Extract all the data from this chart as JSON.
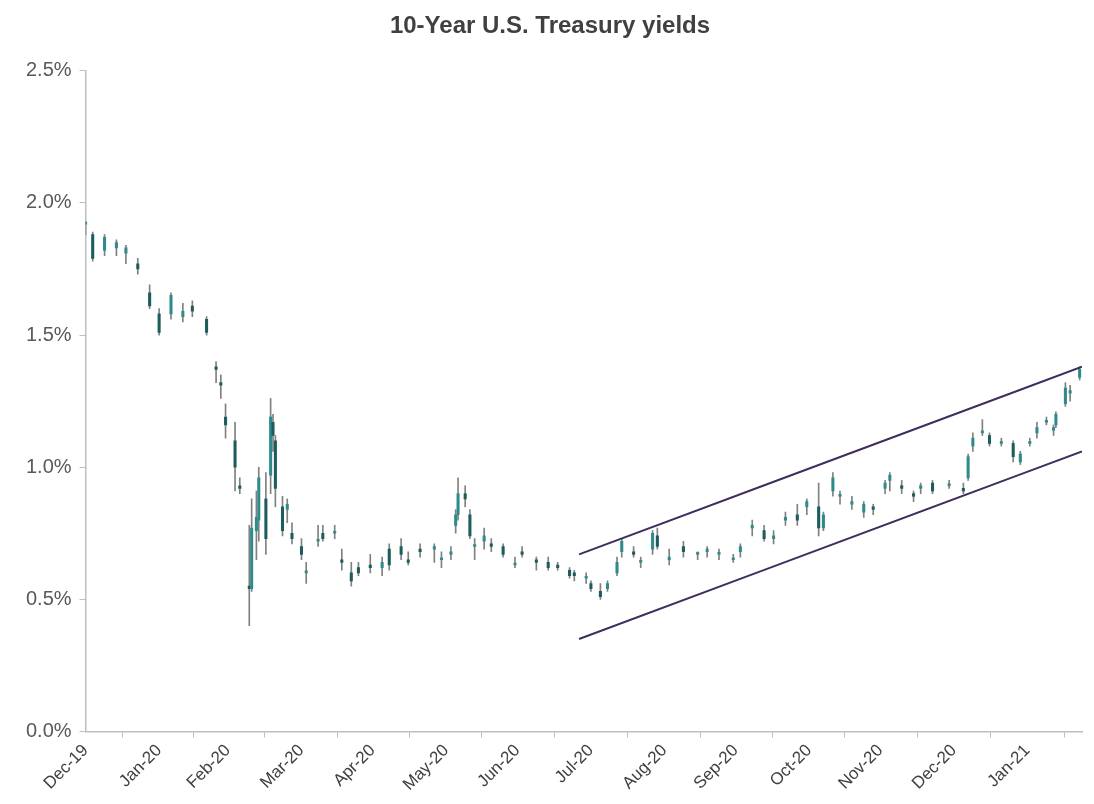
{
  "chart_data": {
    "type": "candlestick",
    "title": "10-Year U.S. Treasury yields",
    "x": [
      "2019-12-31",
      "2020-01-03",
      "2020-01-08",
      "2020-01-13",
      "2020-01-17",
      "2020-01-22",
      "2020-01-27",
      "2020-01-31",
      "2020-02-05",
      "2020-02-10",
      "2020-02-14",
      "2020-02-20",
      "2020-02-24",
      "2020-02-26",
      "2020-02-28",
      "2020-03-03",
      "2020-03-05",
      "2020-03-09",
      "2020-03-10",
      "2020-03-12",
      "2020-03-13",
      "2020-03-16",
      "2020-03-18",
      "2020-03-19",
      "2020-03-20",
      "2020-03-23",
      "2020-03-25",
      "2020-03-27",
      "2020-03-31",
      "2020-04-02",
      "2020-04-07",
      "2020-04-09",
      "2020-04-14",
      "2020-04-17",
      "2020-04-21",
      "2020-04-24",
      "2020-04-29",
      "2020-05-04",
      "2020-05-07",
      "2020-05-12",
      "2020-05-15",
      "2020-05-20",
      "2020-05-26",
      "2020-05-29",
      "2020-06-02",
      "2020-06-04",
      "2020-06-05",
      "2020-06-08",
      "2020-06-10",
      "2020-06-12",
      "2020-06-16",
      "2020-06-19",
      "2020-06-24",
      "2020-06-29",
      "2020-07-02",
      "2020-07-08",
      "2020-07-13",
      "2020-07-17",
      "2020-07-22",
      "2020-07-24",
      "2020-07-29",
      "2020-07-31",
      "2020-08-04",
      "2020-08-07",
      "2020-08-11",
      "2020-08-13",
      "2020-08-18",
      "2020-08-21",
      "2020-08-26",
      "2020-08-28",
      "2020-09-02",
      "2020-09-08",
      "2020-09-14",
      "2020-09-18",
      "2020-09-23",
      "2020-09-29",
      "2020-10-02",
      "2020-10-07",
      "2020-10-12",
      "2020-10-16",
      "2020-10-21",
      "2020-10-26",
      "2020-10-30",
      "2020-11-04",
      "2020-11-06",
      "2020-11-10",
      "2020-11-13",
      "2020-11-18",
      "2020-11-23",
      "2020-11-27",
      "2020-12-02",
      "2020-12-04",
      "2020-12-09",
      "2020-12-14",
      "2020-12-17",
      "2020-12-22",
      "2020-12-29",
      "2021-01-04",
      "2021-01-06",
      "2021-01-08",
      "2021-01-12",
      "2021-01-15",
      "2021-01-20",
      "2021-01-25",
      "2021-01-28",
      "2021-02-01",
      "2021-02-04",
      "2021-02-08",
      "2021-02-11",
      "2021-02-12",
      "2021-02-16",
      "2021-02-18",
      "2021-02-22"
    ],
    "ohlc": [
      [
        1.92,
        1.93,
        1.88,
        1.92
      ],
      [
        1.88,
        1.89,
        1.78,
        1.79
      ],
      [
        1.82,
        1.88,
        1.8,
        1.87
      ],
      [
        1.83,
        1.86,
        1.8,
        1.85
      ],
      [
        1.81,
        1.84,
        1.77,
        1.83
      ],
      [
        1.77,
        1.79,
        1.73,
        1.75
      ],
      [
        1.66,
        1.69,
        1.6,
        1.61
      ],
      [
        1.58,
        1.6,
        1.5,
        1.51
      ],
      [
        1.58,
        1.66,
        1.56,
        1.65
      ],
      [
        1.57,
        1.62,
        1.55,
        1.59
      ],
      [
        1.61,
        1.63,
        1.57,
        1.59
      ],
      [
        1.56,
        1.57,
        1.5,
        1.51
      ],
      [
        1.38,
        1.4,
        1.32,
        1.37
      ],
      [
        1.32,
        1.35,
        1.26,
        1.31
      ],
      [
        1.19,
        1.24,
        1.11,
        1.16
      ],
      [
        1.1,
        1.17,
        0.91,
        1.0
      ],
      [
        0.93,
        0.96,
        0.9,
        0.92
      ],
      [
        0.55,
        0.78,
        0.4,
        0.54
      ],
      [
        0.54,
        0.88,
        0.53,
        0.77
      ],
      [
        0.76,
        0.91,
        0.65,
        0.81
      ],
      [
        0.8,
        1.0,
        0.72,
        0.96
      ],
      [
        0.88,
        0.98,
        0.67,
        0.73
      ],
      [
        0.97,
        1.26,
        0.9,
        1.19
      ],
      [
        1.17,
        1.2,
        1.06,
        1.12
      ],
      [
        1.1,
        1.12,
        0.85,
        0.92
      ],
      [
        0.85,
        0.89,
        0.74,
        0.76
      ],
      [
        0.84,
        0.88,
        0.79,
        0.86
      ],
      [
        0.75,
        0.79,
        0.71,
        0.73
      ],
      [
        0.7,
        0.73,
        0.65,
        0.67
      ],
      [
        0.6,
        0.64,
        0.56,
        0.6
      ],
      [
        0.72,
        0.78,
        0.7,
        0.72
      ],
      [
        0.75,
        0.78,
        0.72,
        0.73
      ],
      [
        0.75,
        0.78,
        0.73,
        0.75
      ],
      [
        0.65,
        0.69,
        0.61,
        0.64
      ],
      [
        0.6,
        0.64,
        0.55,
        0.57
      ],
      [
        0.62,
        0.64,
        0.59,
        0.6
      ],
      [
        0.63,
        0.67,
        0.6,
        0.62
      ],
      [
        0.62,
        0.66,
        0.59,
        0.64
      ],
      [
        0.69,
        0.71,
        0.61,
        0.63
      ],
      [
        0.7,
        0.73,
        0.65,
        0.67
      ],
      [
        0.65,
        0.68,
        0.63,
        0.64
      ],
      [
        0.69,
        0.71,
        0.66,
        0.68
      ],
      [
        0.69,
        0.71,
        0.64,
        0.7
      ],
      [
        0.65,
        0.68,
        0.62,
        0.65
      ],
      [
        0.67,
        0.7,
        0.65,
        0.68
      ],
      [
        0.78,
        0.84,
        0.75,
        0.82
      ],
      [
        0.82,
        0.96,
        0.8,
        0.9
      ],
      [
        0.9,
        0.93,
        0.85,
        0.88
      ],
      [
        0.82,
        0.84,
        0.73,
        0.74
      ],
      [
        0.7,
        0.73,
        0.65,
        0.7
      ],
      [
        0.72,
        0.77,
        0.69,
        0.74
      ],
      [
        0.71,
        0.73,
        0.68,
        0.7
      ],
      [
        0.7,
        0.71,
        0.66,
        0.67
      ],
      [
        0.63,
        0.66,
        0.62,
        0.63
      ],
      [
        0.68,
        0.7,
        0.66,
        0.67
      ],
      [
        0.65,
        0.66,
        0.61,
        0.64
      ],
      [
        0.64,
        0.66,
        0.61,
        0.62
      ],
      [
        0.63,
        0.64,
        0.61,
        0.62
      ],
      [
        0.61,
        0.62,
        0.58,
        0.59
      ],
      [
        0.6,
        0.61,
        0.57,
        0.59
      ],
      [
        0.58,
        0.6,
        0.56,
        0.58
      ],
      [
        0.56,
        0.57,
        0.53,
        0.54
      ],
      [
        0.53,
        0.56,
        0.5,
        0.51
      ],
      [
        0.54,
        0.57,
        0.53,
        0.56
      ],
      [
        0.6,
        0.66,
        0.59,
        0.64
      ],
      [
        0.68,
        0.73,
        0.66,
        0.72
      ],
      [
        0.68,
        0.7,
        0.66,
        0.67
      ],
      [
        0.64,
        0.66,
        0.62,
        0.64
      ],
      [
        0.69,
        0.76,
        0.67,
        0.75
      ],
      [
        0.74,
        0.77,
        0.69,
        0.7
      ],
      [
        0.65,
        0.69,
        0.63,
        0.66
      ],
      [
        0.7,
        0.72,
        0.66,
        0.68
      ],
      [
        0.67,
        0.68,
        0.65,
        0.67
      ],
      [
        0.68,
        0.7,
        0.66,
        0.69
      ],
      [
        0.67,
        0.69,
        0.65,
        0.67
      ],
      [
        0.65,
        0.67,
        0.64,
        0.65
      ],
      [
        0.68,
        0.71,
        0.66,
        0.7
      ],
      [
        0.77,
        0.8,
        0.74,
        0.78
      ],
      [
        0.76,
        0.78,
        0.72,
        0.73
      ],
      [
        0.73,
        0.76,
        0.71,
        0.74
      ],
      [
        0.8,
        0.83,
        0.78,
        0.81
      ],
      [
        0.82,
        0.86,
        0.78,
        0.8
      ],
      [
        0.85,
        0.88,
        0.82,
        0.87
      ],
      [
        0.85,
        0.94,
        0.74,
        0.77
      ],
      [
        0.77,
        0.83,
        0.76,
        0.82
      ],
      [
        0.91,
        0.98,
        0.89,
        0.96
      ],
      [
        0.89,
        0.91,
        0.86,
        0.89
      ],
      [
        0.86,
        0.89,
        0.84,
        0.87
      ],
      [
        0.83,
        0.87,
        0.81,
        0.86
      ],
      [
        0.85,
        0.86,
        0.82,
        0.84
      ],
      [
        0.92,
        0.95,
        0.9,
        0.94
      ],
      [
        0.95,
        0.98,
        0.91,
        0.97
      ],
      [
        0.93,
        0.95,
        0.9,
        0.92
      ],
      [
        0.9,
        0.91,
        0.87,
        0.89
      ],
      [
        0.92,
        0.94,
        0.9,
        0.93
      ],
      [
        0.94,
        0.95,
        0.9,
        0.91
      ],
      [
        0.93,
        0.95,
        0.92,
        0.93
      ],
      [
        0.92,
        0.94,
        0.9,
        0.91
      ],
      [
        0.96,
        1.05,
        0.95,
        1.04
      ],
      [
        1.08,
        1.13,
        1.06,
        1.11
      ],
      [
        1.13,
        1.18,
        1.12,
        1.13
      ],
      [
        1.12,
        1.13,
        1.08,
        1.09
      ],
      [
        1.09,
        1.11,
        1.08,
        1.09
      ],
      [
        1.09,
        1.1,
        1.02,
        1.04
      ],
      [
        1.02,
        1.06,
        1.01,
        1.05
      ],
      [
        1.09,
        1.11,
        1.08,
        1.09
      ],
      [
        1.13,
        1.17,
        1.11,
        1.15
      ],
      [
        1.17,
        1.19,
        1.16,
        1.17
      ],
      [
        1.14,
        1.16,
        1.12,
        1.15
      ],
      [
        1.16,
        1.21,
        1.15,
        1.2
      ],
      [
        1.24,
        1.32,
        1.23,
        1.3
      ],
      [
        1.28,
        1.31,
        1.25,
        1.29
      ],
      [
        1.34,
        1.38,
        1.33,
        1.37
      ]
    ],
    "colors": [
      "#2e8b8b",
      "#1d5c5c",
      "#2e8b8b",
      "#2e8b8b",
      "#2e8b8b",
      "#1d5c5c",
      "#1d5c5c",
      "#1d5c5c",
      "#2e8b8b",
      "#2e8b8b",
      "#1d5c5c",
      "#1d5c5c",
      "#1d5c5c",
      "#1d5c5c",
      "#1d5c5c",
      "#1d5c5c",
      "#1d5c5c",
      "#1d5c5c",
      "#2e8b8b",
      "#2e8b8b",
      "#2e8b8b",
      "#1d5c5c",
      "#2e8b8b",
      "#1d5c5c",
      "#1d5c5c",
      "#1d5c5c",
      "#2e8b8b",
      "#1d5c5c",
      "#1d5c5c",
      "#2e8b8b",
      "#2e8b8b",
      "#1d5c5c",
      "#2e8b8b",
      "#1d5c5c",
      "#1d5c5c",
      "#1d5c5c",
      "#1d5c5c",
      "#2e8b8b",
      "#1d5c5c",
      "#1d5c5c",
      "#1d5c5c",
      "#1d5c5c",
      "#2e8b8b",
      "#2e8b8b",
      "#2e8b8b",
      "#2e8b8b",
      "#2e8b8b",
      "#1d5c5c",
      "#1d5c5c",
      "#2e8b8b",
      "#2e8b8b",
      "#1d5c5c",
      "#1d5c5c",
      "#2e8b8b",
      "#1d5c5c",
      "#1d5c5c",
      "#1d5c5c",
      "#1d5c5c",
      "#1d5c5c",
      "#1d5c5c",
      "#2e8b8b",
      "#1d5c5c",
      "#1d5c5c",
      "#2e8b8b",
      "#2e8b8b",
      "#2e8b8b",
      "#1d5c5c",
      "#2e8b8b",
      "#2e8b8b",
      "#1d5c5c",
      "#2e8b8b",
      "#1d5c5c",
      "#2e8b8b",
      "#2e8b8b",
      "#2e8b8b",
      "#2e8b8b",
      "#2e8b8b",
      "#2e8b8b",
      "#1d5c5c",
      "#2e8b8b",
      "#2e8b8b",
      "#1d5c5c",
      "#2e8b8b",
      "#1d5c5c",
      "#2e8b8b",
      "#2e8b8b",
      "#2e8b8b",
      "#2e8b8b",
      "#2e8b8b",
      "#1d5c5c",
      "#2e8b8b",
      "#2e8b8b",
      "#1d5c5c",
      "#1d5c5c",
      "#2e8b8b",
      "#1d5c5c",
      "#2e8b8b",
      "#1d5c5c",
      "#2e8b8b",
      "#2e8b8b",
      "#2e8b8b",
      "#1d5c5c",
      "#2e8b8b",
      "#1d5c5c",
      "#2e8b8b",
      "#2e8b8b",
      "#2e8b8b",
      "#2e8b8b",
      "#2e8b8b",
      "#2e8b8b",
      "#2e8b8b",
      "#2e8b8b",
      "#2e8b8b"
    ],
    "series": [
      {
        "type": "line",
        "color": "#3f2d5c",
        "x": [
          "2020-07-26",
          "2021-02-23"
        ],
        "values": [
          0.67,
          1.38
        ]
      },
      {
        "type": "line",
        "color": "#3f2d5c",
        "x": [
          "2020-07-26",
          "2021-02-23"
        ],
        "values": [
          0.35,
          1.06
        ]
      }
    ],
    "xlim": [
      "2019-12-31",
      "2021-02-23"
    ],
    "xticks": [
      {
        "value": "2019-12-31",
        "label": "Dec-19"
      },
      {
        "value": "2020-01-31",
        "label": "Jan-20"
      },
      {
        "value": "2020-02-29",
        "label": "Feb-20"
      },
      {
        "value": "2020-03-31",
        "label": "Mar-20"
      },
      {
        "value": "2020-04-30",
        "label": "Apr-20"
      },
      {
        "value": "2020-05-31",
        "label": "May-20"
      },
      {
        "value": "2020-06-30",
        "label": "Jun-20"
      },
      {
        "value": "2020-07-31",
        "label": "Jul-20"
      },
      {
        "value": "2020-08-31",
        "label": "Aug-20"
      },
      {
        "value": "2020-09-30",
        "label": "Sep-20"
      },
      {
        "value": "2020-10-31",
        "label": "Oct-20"
      },
      {
        "value": "2020-11-30",
        "label": "Nov-20"
      },
      {
        "value": "2020-12-31",
        "label": "Dec-20"
      },
      {
        "value": "2021-01-31",
        "label": "Jan-21"
      }
    ],
    "ylim": [
      0,
      2.5
    ],
    "yticks": [
      {
        "value": 0,
        "label": "0.0%"
      },
      {
        "value": 0.5,
        "label": "0.5%"
      },
      {
        "value": 1,
        "label": "1.0%"
      },
      {
        "value": 1.5,
        "label": "1.5%"
      },
      {
        "value": 2,
        "label": "2.0%"
      },
      {
        "value": 2.5,
        "label": "2.5%"
      }
    ],
    "grid": false,
    "legend": false
  }
}
